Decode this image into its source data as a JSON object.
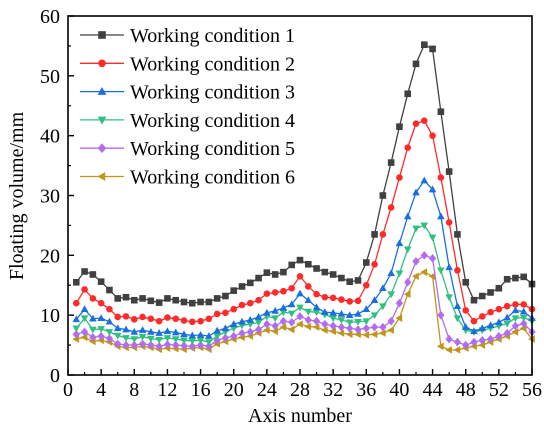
{
  "chart_data": {
    "type": "line",
    "xlabel": "Axis number",
    "ylabel": "Floating volume/mm",
    "xlim": [
      0,
      56
    ],
    "ylim": [
      0,
      60
    ],
    "x_ticks": [
      "0",
      "4",
      "8",
      "12",
      "16",
      "20",
      "24",
      "28",
      "32",
      "36",
      "40",
      "44",
      "48",
      "52",
      "56"
    ],
    "y_ticks": [
      "0",
      "10",
      "20",
      "30",
      "40",
      "50",
      "60"
    ],
    "grid": false,
    "legend_position": "top-left",
    "x": [
      1,
      2,
      3,
      4,
      5,
      6,
      7,
      8,
      9,
      10,
      11,
      12,
      13,
      14,
      15,
      16,
      17,
      18,
      19,
      20,
      21,
      22,
      23,
      24,
      25,
      26,
      27,
      28,
      29,
      30,
      31,
      32,
      33,
      34,
      35,
      36,
      37,
      38,
      39,
      40,
      41,
      42,
      43,
      44,
      45,
      46,
      47,
      48,
      49,
      50,
      51,
      52,
      53,
      54,
      55,
      56
    ],
    "series": [
      {
        "name": "Working condition 1",
        "color": "#404040",
        "marker": "square",
        "values": [
          15.5,
          17.3,
          16.8,
          15.6,
          14.2,
          12.8,
          13.0,
          12.5,
          12.8,
          12.4,
          12.1,
          12.8,
          12.5,
          12.2,
          12.0,
          12.2,
          12.2,
          12.8,
          13.2,
          14.1,
          14.8,
          15.4,
          16.2,
          17.1,
          16.8,
          17.2,
          18.4,
          19.2,
          18.5,
          17.8,
          17.2,
          16.8,
          16.2,
          15.6,
          15.8,
          18.8,
          23.5,
          30.0,
          35.5,
          41.5,
          47.0,
          52.0,
          55.2,
          54.5,
          44.0,
          34.0,
          23.5,
          15.5,
          12.5,
          13.2,
          13.8,
          14.5,
          16.0,
          16.2,
          16.4,
          15.2
        ]
      },
      {
        "name": "Working condition 2",
        "color": "#ff2a2a",
        "marker": "circle",
        "values": [
          12.0,
          14.3,
          12.8,
          12.0,
          11.0,
          9.7,
          9.8,
          9.3,
          9.7,
          9.4,
          9.0,
          9.6,
          9.4,
          9.1,
          8.9,
          9.0,
          9.4,
          10.2,
          10.4,
          11.0,
          11.7,
          12.0,
          12.5,
          13.6,
          13.8,
          14.0,
          14.5,
          16.5,
          14.8,
          13.5,
          13.0,
          12.9,
          12.6,
          12.3,
          12.4,
          15.0,
          18.5,
          23.5,
          28.0,
          33.0,
          38.0,
          42.0,
          42.5,
          40.0,
          33.0,
          25.5,
          17.5,
          10.8,
          9.0,
          9.8,
          10.5,
          11.0,
          11.5,
          11.8,
          11.8,
          11.0
        ]
      },
      {
        "name": "Working condition 3",
        "color": "#1a6fe0",
        "marker": "triangle-up",
        "values": [
          9.3,
          11.0,
          9.4,
          9.5,
          8.9,
          7.8,
          7.6,
          7.2,
          7.5,
          7.2,
          7.0,
          7.3,
          7.1,
          6.8,
          6.6,
          6.7,
          6.5,
          7.4,
          7.8,
          8.5,
          8.9,
          9.2,
          9.7,
          10.4,
          10.7,
          11.2,
          11.8,
          13.6,
          12.5,
          11.3,
          10.5,
          10.4,
          10.2,
          10.0,
          10.2,
          11.0,
          12.5,
          14.5,
          17.0,
          22.0,
          26.5,
          30.5,
          32.5,
          31.0,
          26.5,
          18.0,
          11.5,
          8.0,
          7.3,
          7.8,
          8.3,
          8.8,
          9.6,
          10.8,
          10.6,
          9.5
        ]
      },
      {
        "name": "Working condition 4",
        "color": "#2fbf7f",
        "marker": "triangle-down",
        "values": [
          7.8,
          9.5,
          7.6,
          7.7,
          7.2,
          6.6,
          6.2,
          6.0,
          6.4,
          6.1,
          5.9,
          6.2,
          6.0,
          5.8,
          5.7,
          5.8,
          5.5,
          6.5,
          7.2,
          7.8,
          8.3,
          8.5,
          8.8,
          9.8,
          9.5,
          10.5,
          10.3,
          11.3,
          10.6,
          10.5,
          10.1,
          9.5,
          9.2,
          8.8,
          8.9,
          9.0,
          10.0,
          11.5,
          13.5,
          17.0,
          21.0,
          24.5,
          25.0,
          23.0,
          17.5,
          13.0,
          9.5,
          7.5,
          7.2,
          7.5,
          7.8,
          8.2,
          8.6,
          9.5,
          9.6,
          9.0
        ]
      },
      {
        "name": "Working condition 5",
        "color": "#b36bf0",
        "marker": "diamond",
        "values": [
          6.8,
          7.2,
          6.3,
          6.5,
          6.1,
          5.2,
          5.0,
          5.0,
          5.2,
          5.0,
          4.8,
          5.1,
          5.0,
          4.9,
          4.8,
          5.0,
          4.8,
          5.8,
          6.2,
          6.5,
          7.0,
          7.2,
          7.6,
          8.5,
          8.2,
          9.0,
          8.8,
          9.8,
          9.2,
          9.0,
          8.5,
          8.2,
          8.0,
          7.8,
          7.6,
          7.8,
          8.0,
          8.0,
          9.0,
          12.0,
          15.5,
          19.0,
          20.0,
          19.5,
          10.0,
          6.0,
          5.5,
          5.0,
          5.5,
          5.8,
          6.0,
          6.5,
          7.0,
          8.2,
          8.6,
          7.2
        ]
      },
      {
        "name": "Working condition 6",
        "color": "#c0951a",
        "marker": "triangle-left",
        "values": [
          6.0,
          6.3,
          5.6,
          5.8,
          5.5,
          4.8,
          4.6,
          4.6,
          4.8,
          4.6,
          4.3,
          4.5,
          4.4,
          4.3,
          4.5,
          4.6,
          4.3,
          5.2,
          5.6,
          6.0,
          6.3,
          6.5,
          7.0,
          7.5,
          7.3,
          8.0,
          7.6,
          8.5,
          8.1,
          8.0,
          7.5,
          7.3,
          7.0,
          6.8,
          6.8,
          6.7,
          6.8,
          7.0,
          7.5,
          9.5,
          13.5,
          16.5,
          17.2,
          16.5,
          4.8,
          4.2,
          4.2,
          4.5,
          4.8,
          5.0,
          5.5,
          6.0,
          6.5,
          7.2,
          7.8,
          6.0
        ]
      }
    ]
  }
}
